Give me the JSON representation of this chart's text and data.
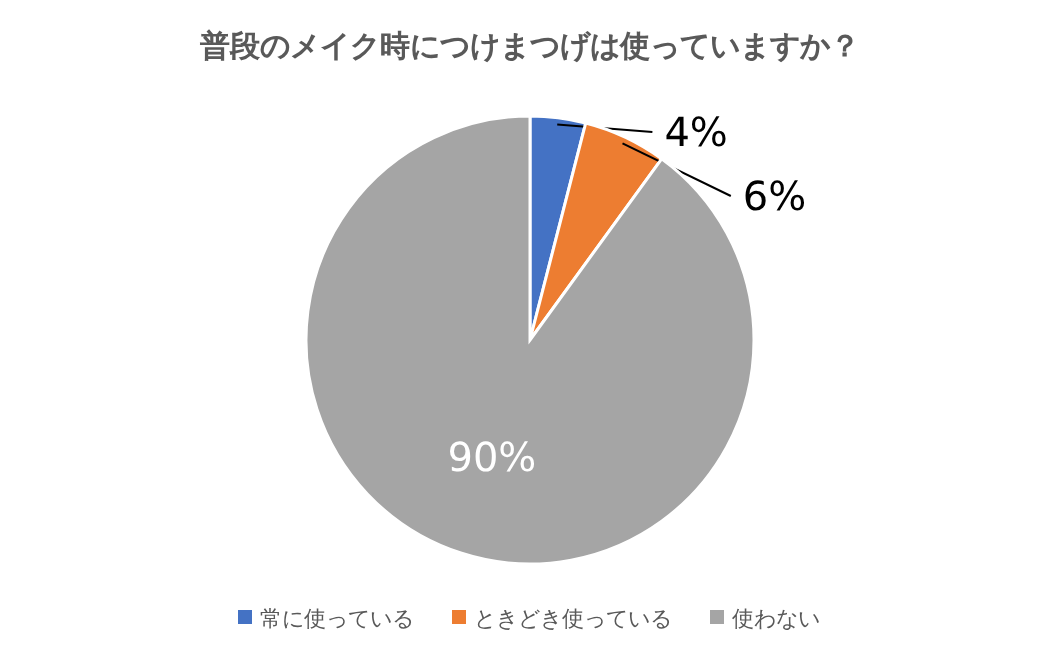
{
  "chart_data": {
    "type": "pie",
    "title": "普段のメイク時につけまつげは使っていますか？",
    "categories": [
      "常に使っている",
      "ときどき使っている",
      "使わない"
    ],
    "values": [
      4,
      6,
      90
    ],
    "value_labels": [
      "4%",
      "6%",
      "90%"
    ],
    "colors": [
      "#4472c4",
      "#ed7d31",
      "#a5a5a5"
    ],
    "legend": "bottom"
  }
}
